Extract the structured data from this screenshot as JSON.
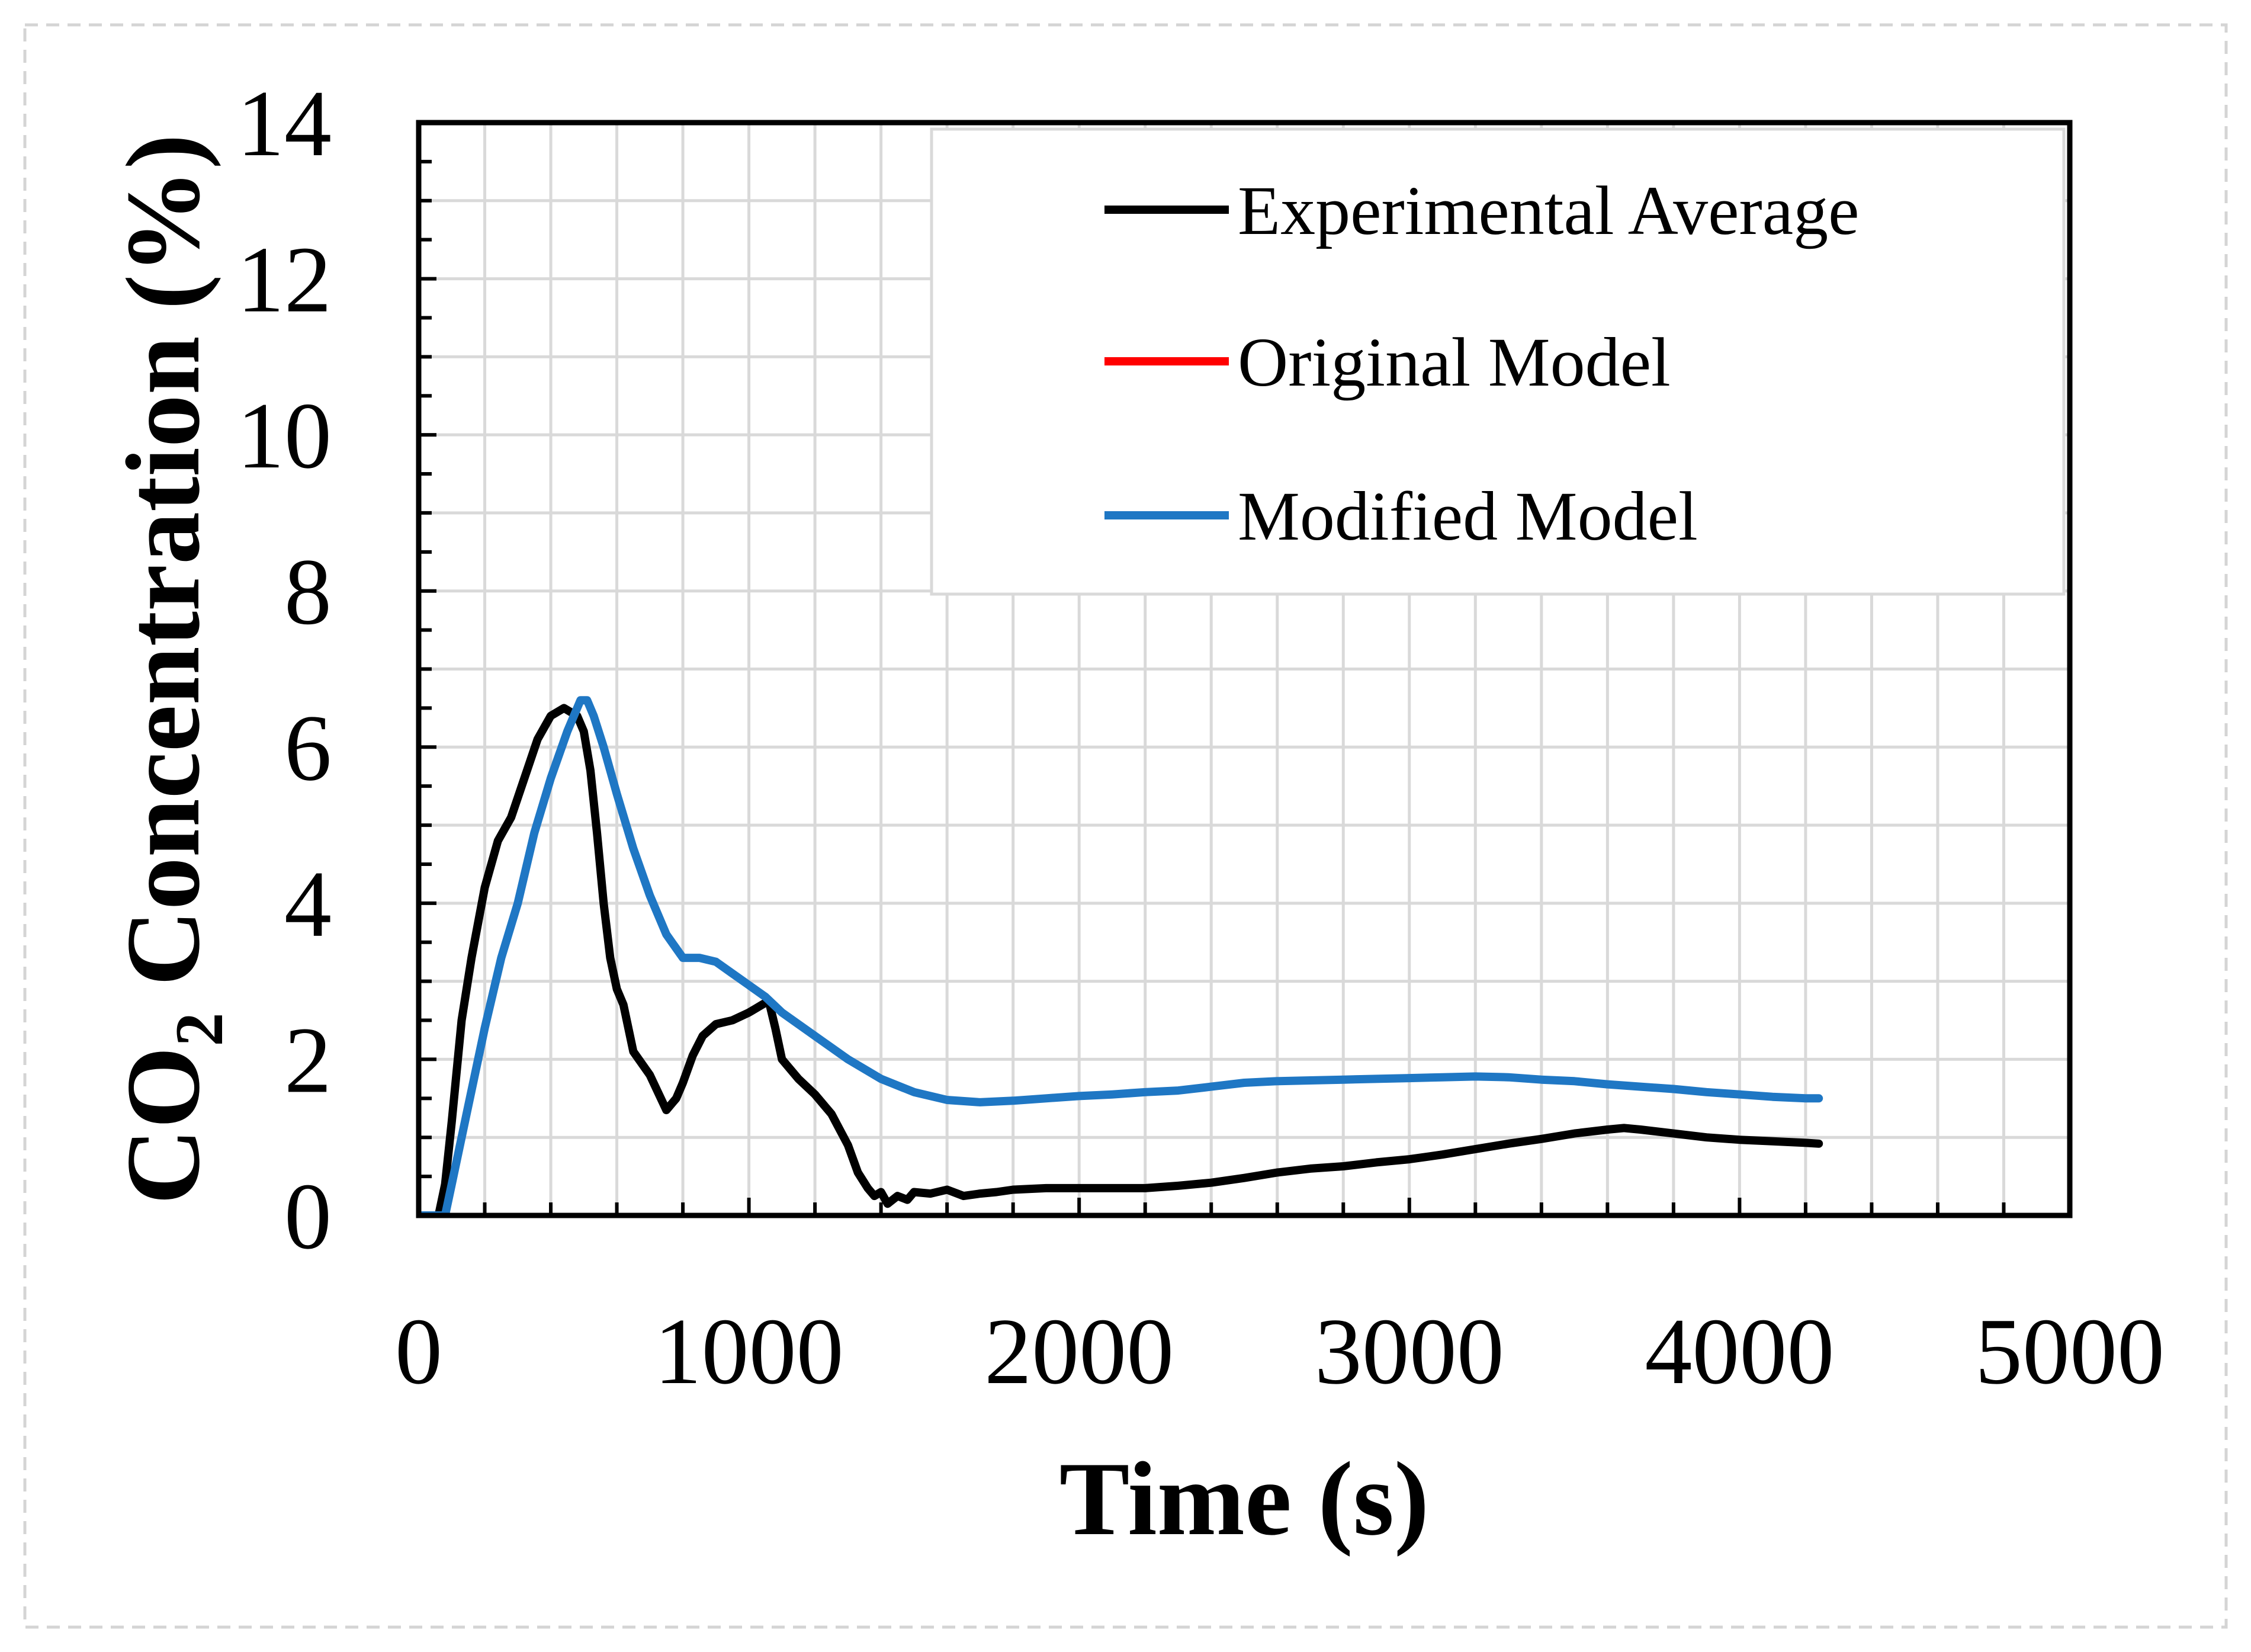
{
  "chart_data": {
    "type": "line",
    "title": "",
    "xlabel": "Time (s)",
    "ylabel": {
      "prefix": "CO",
      "subscript": "2",
      "suffix": " Concentration (%)"
    },
    "xlim": [
      0,
      5000
    ],
    "ylim": [
      0,
      14
    ],
    "xticks": [
      0,
      1000,
      2000,
      3000,
      4000,
      5000
    ],
    "yticks": [
      0,
      2,
      4,
      6,
      8,
      10,
      12,
      14
    ],
    "xtick_labels": [
      "0",
      "1000",
      "2000",
      "3000",
      "4000",
      "5000"
    ],
    "ytick_labels": [
      "0",
      "2",
      "4",
      "6",
      "8",
      "10",
      "12",
      "14"
    ],
    "grid": true,
    "legend_position": "top-right",
    "series": [
      {
        "name": "Experimental Average",
        "color": "#000000",
        "x": [
          0,
          60,
          80,
          100,
          130,
          160,
          200,
          240,
          280,
          320,
          360,
          400,
          440,
          480,
          500,
          520,
          540,
          560,
          580,
          600,
          620,
          650,
          700,
          750,
          780,
          800,
          830,
          860,
          900,
          950,
          1000,
          1040,
          1060,
          1080,
          1100,
          1150,
          1200,
          1250,
          1300,
          1330,
          1360,
          1380,
          1400,
          1420,
          1450,
          1480,
          1500,
          1550,
          1600,
          1650,
          1700,
          1750,
          1800,
          1900,
          2000,
          2100,
          2200,
          2300,
          2400,
          2500,
          2600,
          2700,
          2800,
          2900,
          3000,
          3100,
          3200,
          3300,
          3400,
          3500,
          3600,
          3650,
          3700,
          3800,
          3900,
          4000,
          4100,
          4200,
          4240
        ],
        "y": [
          0,
          0,
          0.4,
          1.2,
          2.5,
          3.3,
          4.2,
          4.8,
          5.1,
          5.6,
          6.1,
          6.4,
          6.5,
          6.4,
          6.2,
          5.7,
          4.9,
          4.0,
          3.3,
          2.9,
          2.7,
          2.1,
          1.8,
          1.35,
          1.5,
          1.7,
          2.05,
          2.3,
          2.45,
          2.5,
          2.6,
          2.7,
          2.75,
          2.4,
          2.0,
          1.75,
          1.55,
          1.3,
          0.9,
          0.55,
          0.35,
          0.25,
          0.3,
          0.15,
          0.25,
          0.2,
          0.3,
          0.28,
          0.33,
          0.25,
          0.28,
          0.3,
          0.33,
          0.35,
          0.35,
          0.35,
          0.35,
          0.38,
          0.42,
          0.48,
          0.55,
          0.6,
          0.63,
          0.68,
          0.72,
          0.78,
          0.85,
          0.92,
          0.98,
          1.05,
          1.1,
          1.12,
          1.1,
          1.05,
          1.0,
          0.97,
          0.95,
          0.93,
          0.92
        ]
      },
      {
        "name": "Original Model",
        "color": "#ff0000",
        "x": [],
        "y": []
      },
      {
        "name": "Modified Model",
        "color": "#1f77c4",
        "x": [
          0,
          80,
          100,
          150,
          200,
          250,
          300,
          350,
          400,
          450,
          490,
          510,
          530,
          560,
          600,
          650,
          700,
          750,
          800,
          850,
          900,
          950,
          1000,
          1050,
          1100,
          1200,
          1300,
          1400,
          1500,
          1600,
          1700,
          1800,
          1900,
          2000,
          2100,
          2200,
          2300,
          2400,
          2500,
          2600,
          2700,
          2800,
          2900,
          3000,
          3100,
          3200,
          3300,
          3400,
          3500,
          3600,
          3700,
          3800,
          3900,
          4000,
          4100,
          4200,
          4240
        ],
        "y": [
          0,
          0,
          0.4,
          1.4,
          2.4,
          3.3,
          4.0,
          4.9,
          5.6,
          6.2,
          6.6,
          6.6,
          6.4,
          6.0,
          5.4,
          4.7,
          4.1,
          3.6,
          3.3,
          3.3,
          3.25,
          3.1,
          2.95,
          2.8,
          2.6,
          2.3,
          2.0,
          1.75,
          1.58,
          1.48,
          1.45,
          1.47,
          1.5,
          1.53,
          1.55,
          1.58,
          1.6,
          1.65,
          1.7,
          1.72,
          1.73,
          1.74,
          1.75,
          1.76,
          1.77,
          1.78,
          1.77,
          1.74,
          1.72,
          1.68,
          1.65,
          1.62,
          1.58,
          1.55,
          1.52,
          1.5,
          1.5
        ]
      }
    ]
  }
}
